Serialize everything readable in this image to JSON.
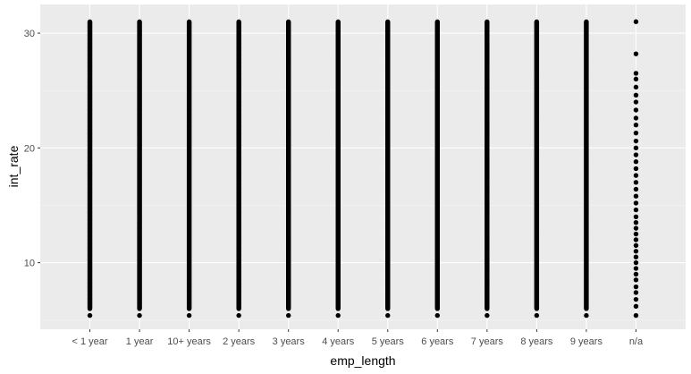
{
  "chart_data": {
    "type": "scatter",
    "title": "",
    "xlabel": "emp_length",
    "ylabel": "int_rate",
    "categories": [
      "< 1 year",
      "1 year",
      "10+ years",
      "2 years",
      "3 years",
      "4 years",
      "5 years",
      "6 years",
      "7 years",
      "8 years",
      "9 years",
      "n/a"
    ],
    "ylim": [
      4.2,
      32.5
    ],
    "yticks": [
      10,
      20,
      30
    ],
    "grid": true,
    "legend": "none",
    "series": [
      {
        "points_per_category": [
          {
            "category": "< 1 year",
            "min": 5.4,
            "max": 31.0,
            "distribution": "dense"
          },
          {
            "category": "1 year",
            "min": 5.4,
            "max": 31.0,
            "distribution": "dense"
          },
          {
            "category": "10+ years",
            "min": 5.4,
            "max": 31.0,
            "distribution": "dense"
          },
          {
            "category": "2 years",
            "min": 5.4,
            "max": 31.0,
            "distribution": "dense"
          },
          {
            "category": "3 years",
            "min": 5.4,
            "max": 31.0,
            "distribution": "dense"
          },
          {
            "category": "4 years",
            "min": 5.4,
            "max": 31.0,
            "distribution": "dense"
          },
          {
            "category": "5 years",
            "min": 5.4,
            "max": 31.0,
            "distribution": "dense"
          },
          {
            "category": "6 years",
            "min": 5.4,
            "max": 31.0,
            "distribution": "dense"
          },
          {
            "category": "7 years",
            "min": 5.4,
            "max": 31.0,
            "distribution": "dense"
          },
          {
            "category": "8 years",
            "min": 5.4,
            "max": 31.0,
            "distribution": "dense"
          },
          {
            "category": "9 years",
            "min": 5.4,
            "max": 31.0,
            "distribution": "dense"
          },
          {
            "category": "n/a",
            "values": [
              5.4,
              6.2,
              6.8,
              7.4,
              7.9,
              8.5,
              9.0,
              9.5,
              10.0,
              10.5,
              11.0,
              11.5,
              12.0,
              12.5,
              13.0,
              13.5,
              14.0,
              14.6,
              15.2,
              15.8,
              16.4,
              17.0,
              17.6,
              18.2,
              18.8,
              19.4,
              20.0,
              20.6,
              21.3,
              22.0,
              22.6,
              23.3,
              24.0,
              24.6,
              25.3,
              26.0,
              26.5,
              28.2,
              31.0
            ]
          }
        ]
      }
    ],
    "colors": {
      "panel_background": "#ebebeb",
      "grid_major": "#ffffff",
      "grid_minor": "#f5f5f5",
      "point": "#000000",
      "tick_label": "#4d4d4d"
    }
  }
}
